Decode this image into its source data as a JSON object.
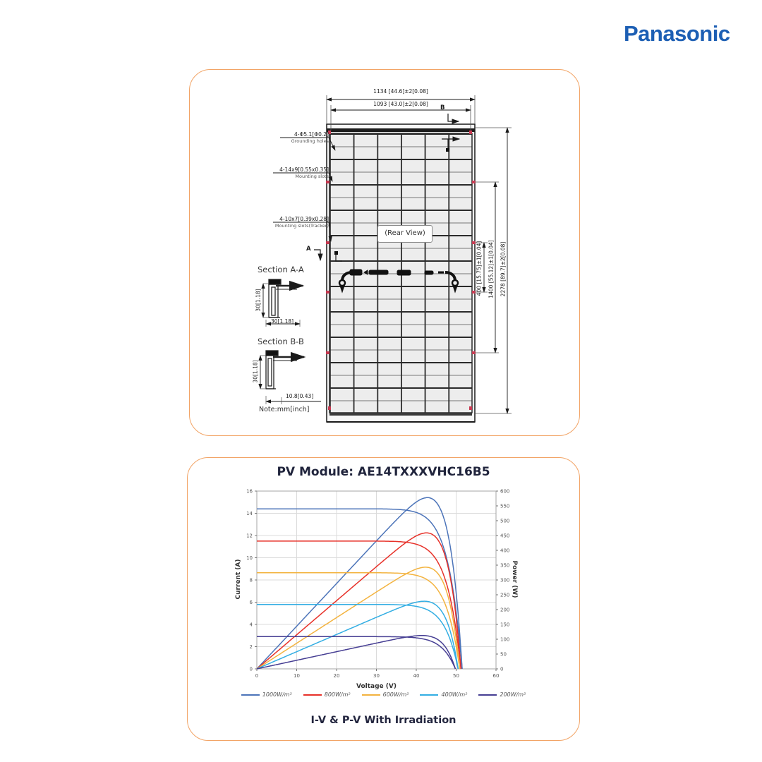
{
  "brand": {
    "name": "Panasonic",
    "color": "#1D5FB4"
  },
  "spec_sheet": {
    "dimensions": {
      "width_outer": "1134 [44.6]±2[0.08]",
      "width_inner": "1093 [43.0]±2[0.08]",
      "height_outer": "2278 [89.7]±2[0.08]",
      "height_mid": "1400 [55.12]±1[0.04]",
      "height_inner": "400 [15.75]±1[0.04]",
      "section_a_height": "30[1.18]",
      "section_a_width": "30[1.18]",
      "section_b_height": "30[1.18]",
      "section_b_width": "10.8[0.43]"
    },
    "callouts": {
      "grounding": "4-Φ5.1[Φ0.2]",
      "grounding_sub": "Grounding holes",
      "mounting": "4-14x9[0.55x0.35]",
      "mounting_sub": "Mounting slots",
      "tracker": "4-10x7[0.39x0.28]",
      "tracker_sub": "Mounting slots(Tracker)"
    },
    "rear_view_label": "(Rear View)",
    "section_a_title": "Section A-A",
    "section_b_title": "Section B-B",
    "marker_a": "A",
    "marker_b": "B",
    "note": "Note:mm[inch]"
  },
  "chart_data": {
    "type": "line",
    "title": "PV Module: AE14TXXXVHC16B5",
    "footer": "I-V & P-V With Irradiation",
    "xlabel": "Voltage (V)",
    "ylabel_left": "Current (A)",
    "ylabel_right": "Power (W)",
    "xlim": [
      0,
      60
    ],
    "ylim_left": [
      0,
      16
    ],
    "ylim_right": [
      0,
      600
    ],
    "x_ticks": [
      0,
      10,
      20,
      30,
      40,
      50,
      60
    ],
    "y_ticks_left": [
      0,
      2,
      4,
      6,
      8,
      10,
      12,
      14,
      16
    ],
    "y_ticks_right": [
      0,
      50,
      100,
      150,
      200,
      250,
      300,
      350,
      400,
      450,
      500,
      550,
      600
    ],
    "grid": true,
    "legend_position": "bottom",
    "series": [
      {
        "name": "1000W/m²",
        "color": "#4C74B9",
        "isc": 14.4,
        "voc": 51.5,
        "vmp": 43,
        "imp": 13.5,
        "pmax": 580
      },
      {
        "name": "800W/m²",
        "color": "#E73129",
        "isc": 11.5,
        "voc": 51.2,
        "vmp": 43,
        "imp": 10.8,
        "pmax": 465
      },
      {
        "name": "600W/m²",
        "color": "#F3B33F",
        "isc": 8.65,
        "voc": 50.9,
        "vmp": 42.5,
        "imp": 8.1,
        "pmax": 345
      },
      {
        "name": "400W/m²",
        "color": "#33AEE3",
        "isc": 5.8,
        "voc": 50.5,
        "vmp": 42,
        "imp": 5.45,
        "pmax": 230
      },
      {
        "name": "200W/m²",
        "color": "#463E93",
        "isc": 2.9,
        "voc": 49.8,
        "vmp": 41.5,
        "imp": 2.7,
        "pmax": 112
      }
    ]
  }
}
